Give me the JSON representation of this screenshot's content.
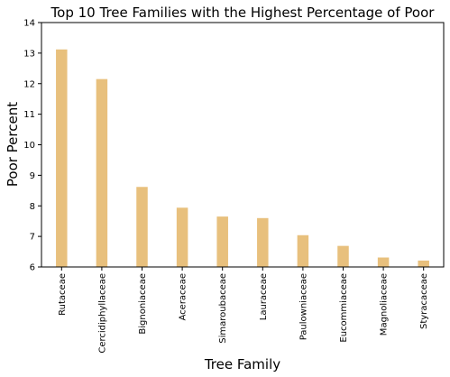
{
  "chart_data": {
    "type": "bar",
    "title": "Top 10 Tree Families with the Highest Percentage of Poor",
    "xlabel": "Tree Family",
    "ylabel": "Poor Percent",
    "categories": [
      "Rutaceae",
      "Cercidiphyllaceae",
      "Bignoniaceae",
      "Aceraceae",
      "Simaroubaceae",
      "Lauraceae",
      "Paulowniaceae",
      "Eucommiaceae",
      "Magnoliaceae",
      "Styracaceae"
    ],
    "values": [
      13.12,
      12.15,
      8.62,
      7.94,
      7.65,
      7.6,
      7.04,
      6.69,
      6.31,
      6.21
    ],
    "ylim": [
      6,
      14
    ],
    "yticks": [
      "6",
      "7",
      "8",
      "9",
      "10",
      "11",
      "12",
      "13",
      "14"
    ],
    "grid": false,
    "bar_color": "#e8c07d"
  }
}
